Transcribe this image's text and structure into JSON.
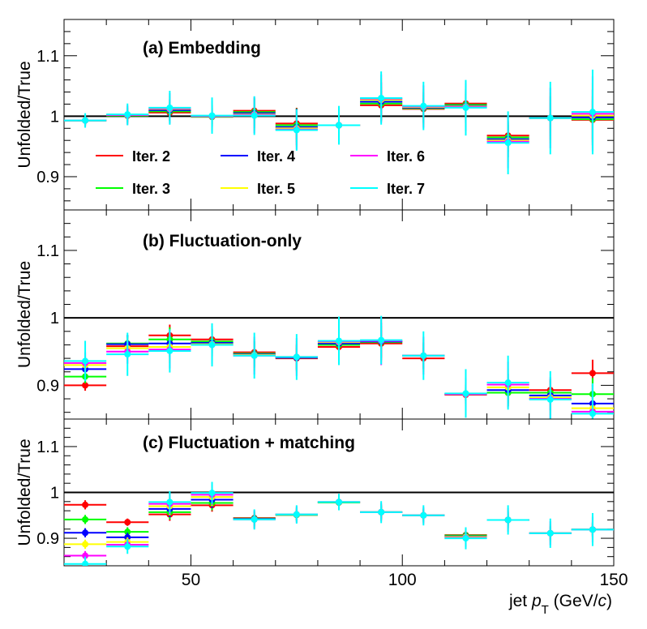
{
  "chart_data": {
    "type": "scatter",
    "xlabel": {
      "prefix": "jet ",
      "var": "p",
      "sub": "T",
      "unit_open": " (GeV/",
      "unit_var": "c",
      "unit_close": ")"
    },
    "xlim": [
      20,
      150
    ],
    "xticks": [
      50,
      100,
      150
    ],
    "xtick_labels": [
      "50",
      "100",
      "150"
    ],
    "bin_edges": [
      20,
      30,
      40,
      50,
      60,
      70,
      80,
      90,
      100,
      110,
      120,
      130,
      140,
      150
    ],
    "bin_centers": [
      25,
      35,
      45,
      55,
      65,
      75,
      85,
      95,
      105,
      115,
      125,
      135,
      145
    ],
    "series_meta": [
      {
        "name": "Iter. 2",
        "color": "#ff0000"
      },
      {
        "name": "Iter. 3",
        "color": "#00ff00"
      },
      {
        "name": "Iter. 4",
        "color": "#0000ff"
      },
      {
        "name": "Iter. 5",
        "color": "#ffff00"
      },
      {
        "name": "Iter. 6",
        "color": "#ff00ff"
      },
      {
        "name": "Iter. 7",
        "color": "#00ffff"
      }
    ],
    "reference_line": 1.0,
    "panels": [
      {
        "label": "(a) Embedding",
        "ylabel": "Unfolded/True",
        "ylim": [
          0.845,
          1.16
        ],
        "yticks": [
          0.9,
          1.0,
          1.1
        ],
        "ytick_labels": [
          "0.9",
          "1",
          "1.1"
        ],
        "legend": true,
        "series": [
          {
            "name": "Iter. 2",
            "values": [
              0.993,
              1.001,
              1.006,
              0.999,
              1.009,
              0.988,
              0.985,
              1.018,
              1.012,
              1.021,
              0.968,
              0.997,
              0.994
            ],
            "errors": [
              0.006,
              0.008,
              0.012,
              0.012,
              0.02,
              0.026,
              0.02,
              0.024,
              0.018,
              0.016,
              0.018,
              0.025,
              0.032
            ]
          },
          {
            "name": "Iter. 3",
            "values": [
              0.993,
              1.001,
              1.008,
              0.999,
              1.007,
              0.985,
              0.985,
              1.021,
              1.013,
              1.019,
              0.965,
              0.997,
              0.995
            ],
            "errors": [
              0.007,
              0.01,
              0.015,
              0.015,
              0.022,
              0.028,
              0.022,
              0.028,
              0.022,
              0.022,
              0.024,
              0.03,
              0.038
            ]
          },
          {
            "name": "Iter. 4",
            "values": [
              0.993,
              1.002,
              1.01,
              1.0,
              1.005,
              0.982,
              0.985,
              1.024,
              1.014,
              1.017,
              0.962,
              0.997,
              0.998
            ],
            "errors": [
              0.008,
              0.012,
              0.018,
              0.018,
              0.025,
              0.03,
              0.025,
              0.032,
              0.026,
              0.028,
              0.03,
              0.036,
              0.046
            ]
          },
          {
            "name": "Iter. 5",
            "values": [
              0.993,
              1.002,
              1.012,
              1.0,
              1.003,
              0.98,
              0.985,
              1.027,
              1.015,
              1.016,
              0.96,
              0.997,
              1.001
            ],
            "errors": [
              0.009,
              0.014,
              0.021,
              0.021,
              0.027,
              0.031,
              0.027,
              0.036,
              0.03,
              0.034,
              0.036,
              0.042,
              0.054
            ]
          },
          {
            "name": "Iter. 6",
            "values": [
              0.993,
              1.002,
              1.013,
              1.0,
              1.002,
              0.978,
              0.985,
              1.029,
              1.016,
              1.015,
              0.958,
              0.997,
              1.004
            ],
            "errors": [
              0.01,
              0.016,
              0.025,
              0.025,
              0.03,
              0.033,
              0.03,
              0.04,
              0.035,
              0.04,
              0.044,
              0.05,
              0.062
            ]
          },
          {
            "name": "Iter. 7",
            "values": [
              0.993,
              1.003,
              1.014,
              1.001,
              1.001,
              0.977,
              0.985,
              1.03,
              1.017,
              1.014,
              0.956,
              0.997,
              1.007
            ],
            "errors": [
              0.012,
              0.018,
              0.028,
              0.03,
              0.032,
              0.034,
              0.032,
              0.044,
              0.04,
              0.046,
              0.052,
              0.06,
              0.07
            ]
          }
        ]
      },
      {
        "label": "(b) Fluctuation-only",
        "ylabel": "Unfolded/True",
        "ylim": [
          0.85,
          1.16
        ],
        "yticks": [
          0.9,
          1.0,
          1.1
        ],
        "ytick_labels": [
          "0.9",
          "1",
          "1.1"
        ],
        "legend": false,
        "series": [
          {
            "name": "Iter. 2",
            "values": [
              0.9,
              0.958,
              0.974,
              0.968,
              0.949,
              0.94,
              0.957,
              0.962,
              0.94,
              0.886,
              0.889,
              0.893,
              0.918
            ],
            "errors": [
              0.008,
              0.01,
              0.016,
              0.016,
              0.016,
              0.016,
              0.016,
              0.02,
              0.016,
              0.008,
              0.016,
              0.016,
              0.02
            ]
          },
          {
            "name": "Iter. 3",
            "values": [
              0.913,
              0.962,
              0.968,
              0.965,
              0.947,
              0.941,
              0.96,
              0.964,
              0.944,
              0.887,
              0.889,
              0.889,
              0.887
            ],
            "errors": [
              0.01,
              0.012,
              0.018,
              0.018,
              0.018,
              0.018,
              0.018,
              0.024,
              0.018,
              0.01,
              0.02,
              0.018,
              0.024
            ]
          },
          {
            "name": "Iter. 4",
            "values": [
              0.924,
              0.961,
              0.962,
              0.963,
              0.946,
              0.941,
              0.962,
              0.965,
              0.944,
              0.887,
              0.893,
              0.885,
              0.873
            ],
            "errors": [
              0.012,
              0.014,
              0.02,
              0.02,
              0.02,
              0.02,
              0.022,
              0.028,
              0.02,
              0.014,
              0.024,
              0.022,
              0.028
            ]
          },
          {
            "name": "Iter. 5",
            "values": [
              0.93,
              0.955,
              0.957,
              0.961,
              0.945,
              0.942,
              0.964,
              0.966,
              0.944,
              0.887,
              0.897,
              0.882,
              0.866
            ],
            "errors": [
              0.014,
              0.016,
              0.024,
              0.024,
              0.024,
              0.024,
              0.026,
              0.032,
              0.024,
              0.018,
              0.028,
              0.026,
              0.032
            ]
          },
          {
            "name": "Iter. 6",
            "values": [
              0.933,
              0.95,
              0.953,
              0.96,
              0.944,
              0.942,
              0.965,
              0.966,
              0.944,
              0.887,
              0.901,
              0.88,
              0.861
            ],
            "errors": [
              0.016,
              0.018,
              0.028,
              0.028,
              0.028,
              0.028,
              0.03,
              0.036,
              0.028,
              0.024,
              0.034,
              0.032,
              0.036
            ]
          },
          {
            "name": "Iter. 7",
            "values": [
              0.936,
              0.946,
              0.951,
              0.96,
              0.944,
              0.942,
              0.966,
              0.967,
              0.944,
              0.888,
              0.904,
              0.879,
              0.858
            ],
            "errors": [
              0.03,
              0.032,
              0.032,
              0.032,
              0.034,
              0.034,
              0.036,
              0.036,
              0.036,
              0.036,
              0.04,
              0.042,
              0.045
            ]
          }
        ]
      },
      {
        "label": "(c) Fluctuation + matching",
        "ylabel": "Unfolded/True",
        "ylim": [
          0.84,
          1.16
        ],
        "yticks": [
          0.9,
          1.0,
          1.1
        ],
        "ytick_labels": [
          "0.9",
          "1",
          "1.1"
        ],
        "legend": false,
        "series": [
          {
            "name": "Iter. 2",
            "values": [
              0.973,
              0.935,
              0.952,
              0.972,
              0.944,
              0.951,
              0.978,
              0.957,
              0.95,
              0.907,
              0.94,
              0.911,
              0.919
            ],
            "errors": [
              0.01,
              0.008,
              0.014,
              0.014,
              0.012,
              0.01,
              0.008,
              0.012,
              0.01,
              0.008,
              0.01,
              0.012,
              0.012
            ]
          },
          {
            "name": "Iter. 3",
            "values": [
              0.941,
              0.914,
              0.957,
              0.977,
              0.943,
              0.951,
              0.978,
              0.957,
              0.95,
              0.906,
              0.94,
              0.911,
              0.919
            ],
            "errors": [
              0.01,
              0.01,
              0.016,
              0.016,
              0.014,
              0.012,
              0.01,
              0.014,
              0.012,
              0.01,
              0.014,
              0.014,
              0.014
            ]
          },
          {
            "name": "Iter. 4",
            "values": [
              0.912,
              0.902,
              0.964,
              0.984,
              0.942,
              0.952,
              0.979,
              0.957,
              0.95,
              0.904,
              0.94,
              0.911,
              0.919
            ],
            "errors": [
              0.01,
              0.01,
              0.018,
              0.018,
              0.016,
              0.014,
              0.012,
              0.016,
              0.014,
              0.012,
              0.018,
              0.016,
              0.016
            ]
          },
          {
            "name": "Iter. 5",
            "values": [
              0.887,
              0.892,
              0.97,
              0.99,
              0.941,
              0.952,
              0.979,
              0.957,
              0.95,
              0.903,
              0.94,
              0.911,
              0.919
            ],
            "errors": [
              0.01,
              0.01,
              0.02,
              0.02,
              0.018,
              0.016,
              0.014,
              0.018,
              0.016,
              0.016,
              0.022,
              0.02,
              0.02
            ]
          },
          {
            "name": "Iter. 6",
            "values": [
              0.862,
              0.886,
              0.975,
              0.995,
              0.941,
              0.952,
              0.979,
              0.957,
              0.95,
              0.901,
              0.94,
              0.911,
              0.919
            ],
            "errors": [
              0.01,
              0.012,
              0.022,
              0.022,
              0.02,
              0.018,
              0.016,
              0.02,
              0.018,
              0.02,
              0.026,
              0.026,
              0.028
            ]
          },
          {
            "name": "Iter. 7",
            "values": [
              0.844,
              0.882,
              0.979,
              0.999,
              0.941,
              0.952,
              0.979,
              0.957,
              0.95,
              0.9,
              0.94,
              0.911,
              0.919
            ],
            "errors": [
              0.016,
              0.016,
              0.024,
              0.024,
              0.022,
              0.02,
              0.018,
              0.024,
              0.022,
              0.024,
              0.032,
              0.032,
              0.036
            ]
          }
        ]
      }
    ]
  }
}
